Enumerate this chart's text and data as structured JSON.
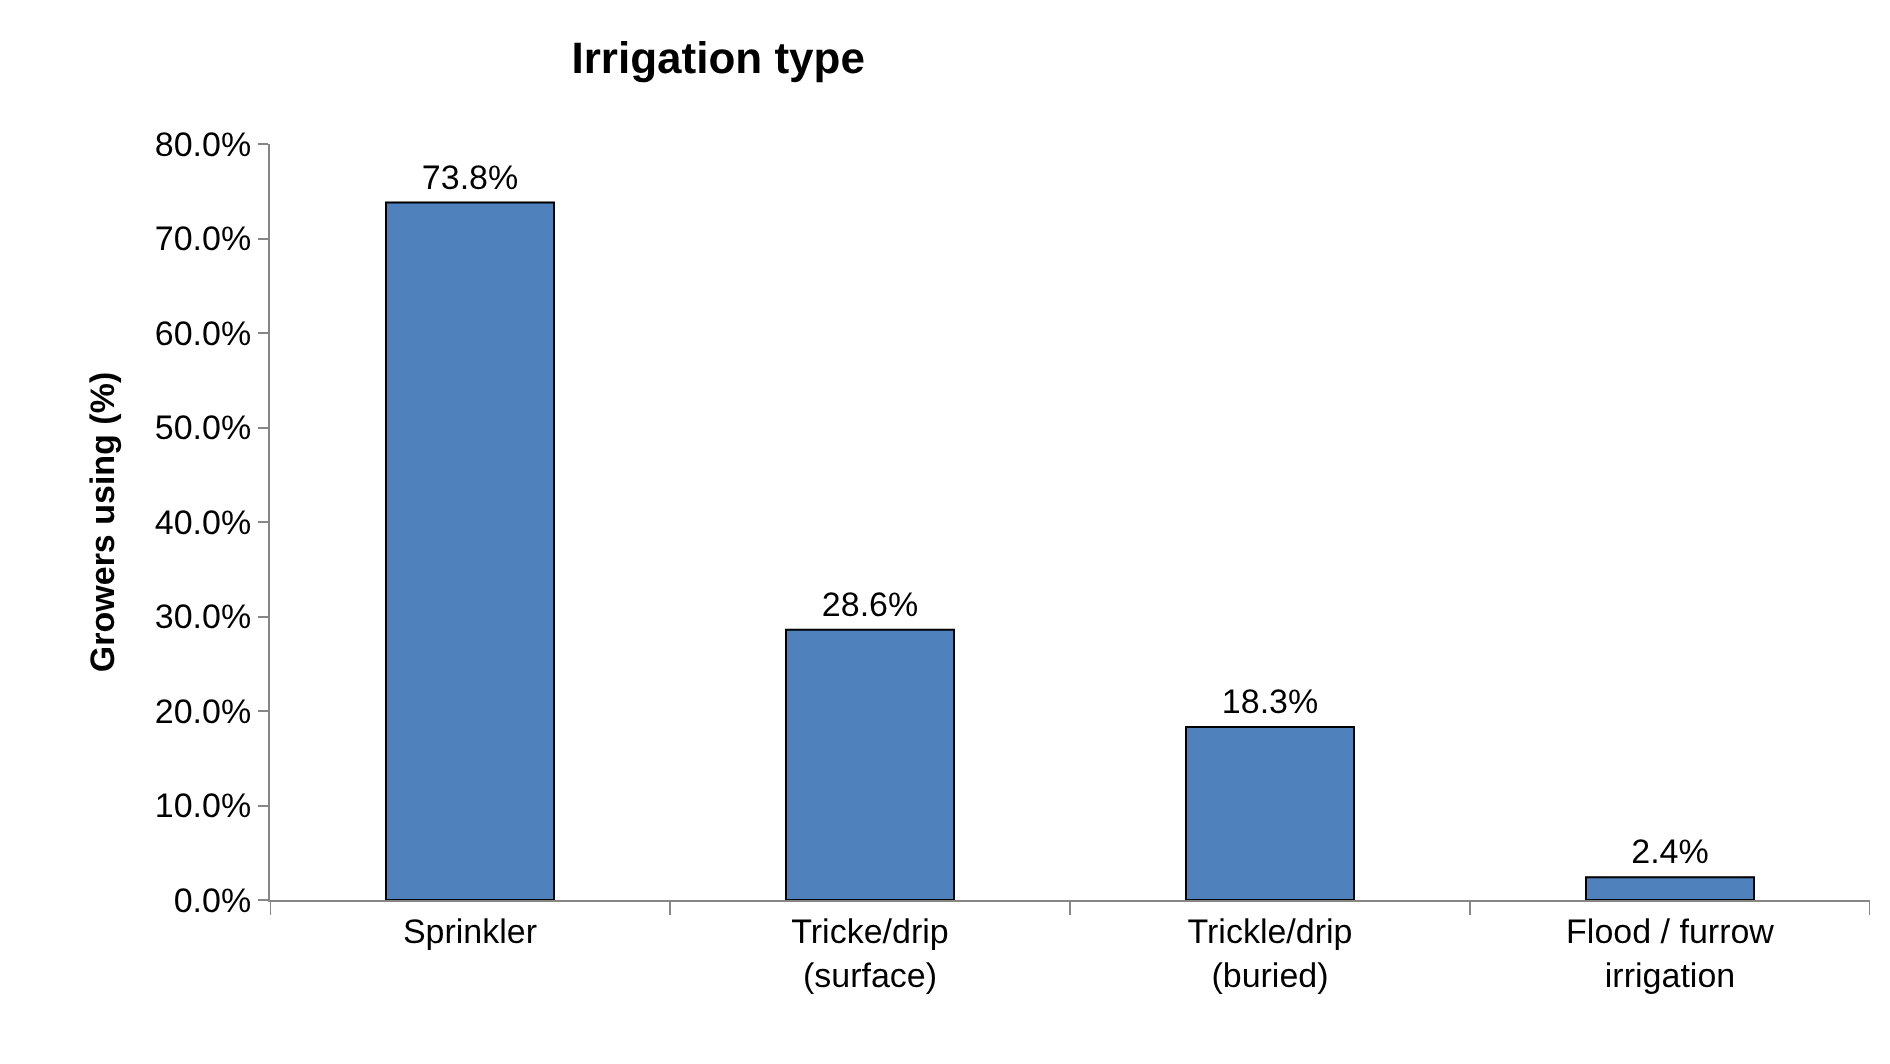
{
  "chart_data": {
    "type": "bar",
    "title": "Irrigation type",
    "ylabel": "Growers using (%)",
    "categories": [
      "Sprinkler",
      "Tricke/drip\n(surface)",
      "Trickle/drip\n(buried)",
      "Flood / furrow\nirrigation"
    ],
    "values": [
      73.8,
      28.6,
      18.3,
      2.4
    ],
    "value_labels": [
      "73.8%",
      "28.6%",
      "18.3%",
      "2.4%"
    ],
    "color": "#4f81bd",
    "ylim": [
      0,
      80
    ],
    "yticks": [
      {
        "value": 0,
        "label": "0.0%"
      },
      {
        "value": 10,
        "label": "10.0%"
      },
      {
        "value": 20,
        "label": "20.0%"
      },
      {
        "value": 30,
        "label": "30.0%"
      },
      {
        "value": 40,
        "label": "40.0%"
      },
      {
        "value": 50,
        "label": "50.0%"
      },
      {
        "value": 60,
        "label": "60.0%"
      },
      {
        "value": 70,
        "label": "70.0%"
      },
      {
        "value": 80,
        "label": "80.0%"
      }
    ]
  }
}
